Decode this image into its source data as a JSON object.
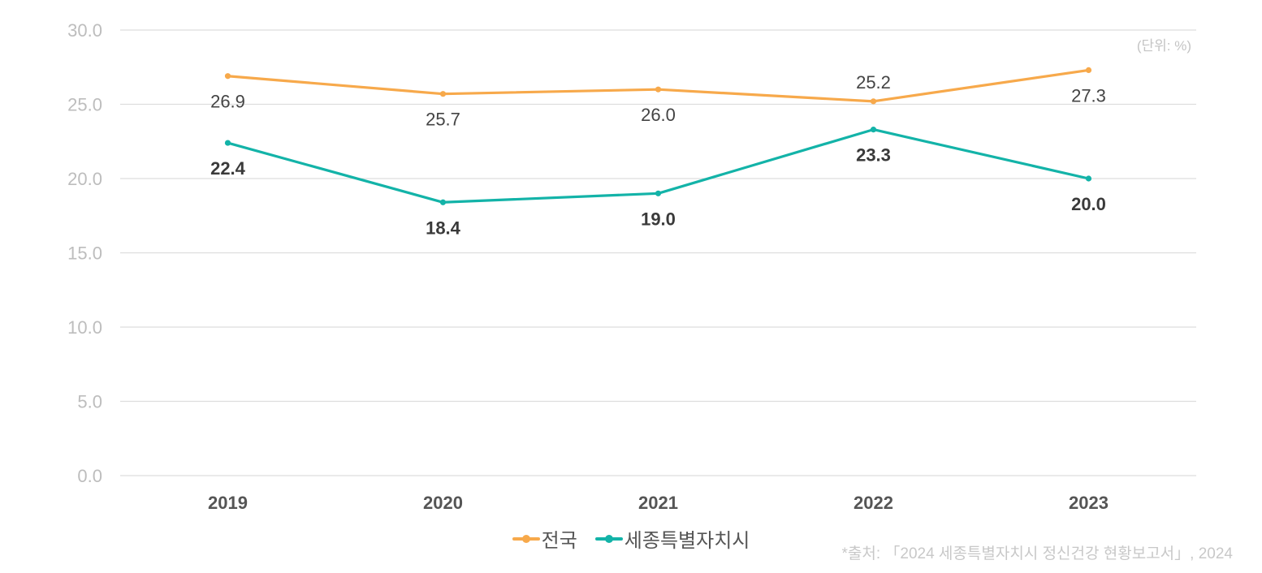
{
  "chart_data": {
    "type": "line",
    "title": "",
    "xlabel": "",
    "ylabel": "",
    "unit_note": "(단위: %)",
    "source_note": "*출처: 「2024 세종특별자치시 정신건강 현황보고서」, 2024",
    "categories": [
      "2019",
      "2020",
      "2021",
      "2022",
      "2023"
    ],
    "ylim": [
      0,
      30
    ],
    "yticks": [
      "0.0",
      "5.0",
      "10.0",
      "15.0",
      "20.0",
      "25.0",
      "30.0"
    ],
    "ytick_values": [
      0,
      5,
      10,
      15,
      20,
      25,
      30
    ],
    "grid": true,
    "legend_position": "bottom",
    "series": [
      {
        "name": "전국",
        "color": "#f7a94b",
        "values": [
          26.9,
          25.7,
          26.0,
          25.2,
          27.3
        ],
        "labels": [
          "26.9",
          "25.7",
          "26.0",
          "25.2",
          "27.3"
        ],
        "label_positions": [
          "below",
          "below",
          "below",
          "above",
          "below"
        ],
        "label_weight": "normal"
      },
      {
        "name": "세종특별자치시",
        "color": "#13b3a8",
        "values": [
          22.4,
          18.4,
          19.0,
          23.3,
          20.0
        ],
        "labels": [
          "22.4",
          "18.4",
          "19.0",
          "23.3",
          "20.0"
        ],
        "label_positions": [
          "below",
          "below",
          "below",
          "below",
          "below"
        ],
        "label_weight": "bold"
      }
    ]
  }
}
